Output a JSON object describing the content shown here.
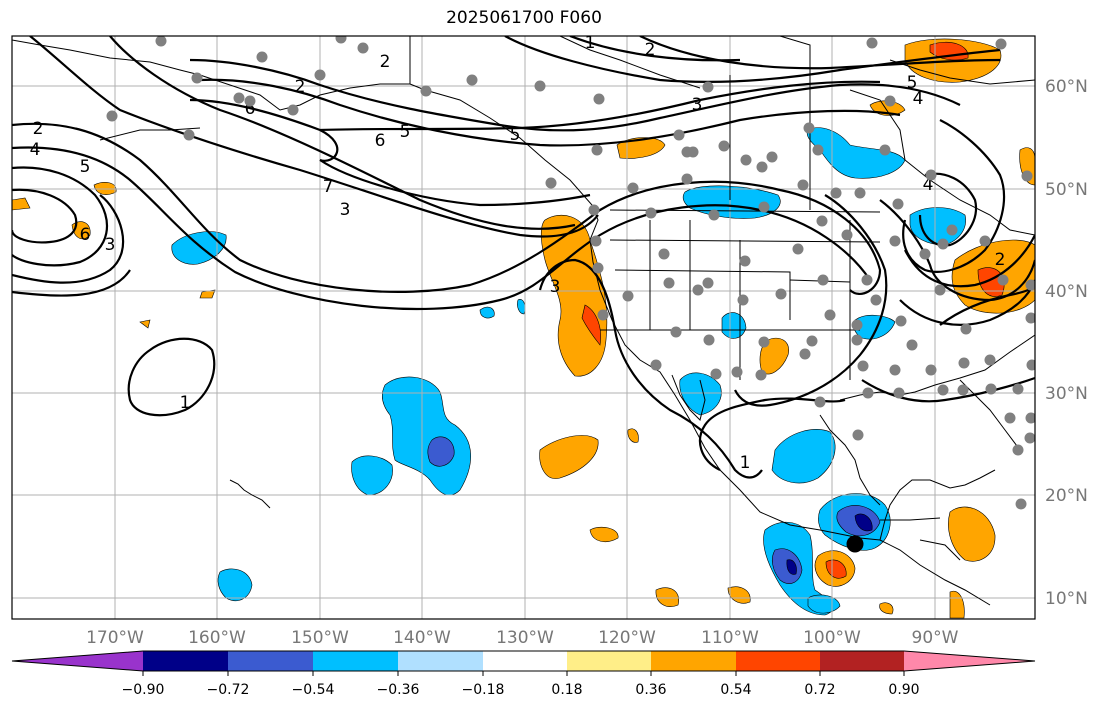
{
  "title": "2025061700 F060",
  "lon_labels": [
    "170°W",
    "160°W",
    "150°W",
    "140°W",
    "130°W",
    "120°W",
    "110°W",
    "100°W",
    "90°W"
  ],
  "lat_labels": [
    "60°N",
    "50°N",
    "40°N",
    "30°N",
    "20°N",
    "10°N"
  ],
  "colorbar": {
    "colors": [
      "#9933cc",
      "#000088",
      "#3b5bd0",
      "#00bfff",
      "#b0e0ff",
      "#ffffff",
      "#ffee88",
      "#ffa500",
      "#ff4500",
      "#b22222",
      "#ff88aa"
    ],
    "tick_labels": [
      "−0.90",
      "−0.72",
      "−0.54",
      "−0.36",
      "−0.18",
      "0.18",
      "0.36",
      "0.54",
      "0.72",
      "0.90"
    ]
  },
  "contour_labels": [
    "2",
    "2",
    "2",
    "3",
    "3",
    "3",
    "3",
    "4",
    "4",
    "4",
    "5",
    "5",
    "5",
    "5",
    "6",
    "6",
    "6",
    "7",
    "1",
    "1",
    "1",
    "2",
    "2"
  ],
  "colors": {
    "warm": "#ffa500",
    "warm_strong": "#ff4500",
    "cool": "#00bfff",
    "cool_strong": "#3b5bd0",
    "cool_deep": "#000088",
    "station_dot": "#808080",
    "grid": "#b0b0b0"
  }
}
